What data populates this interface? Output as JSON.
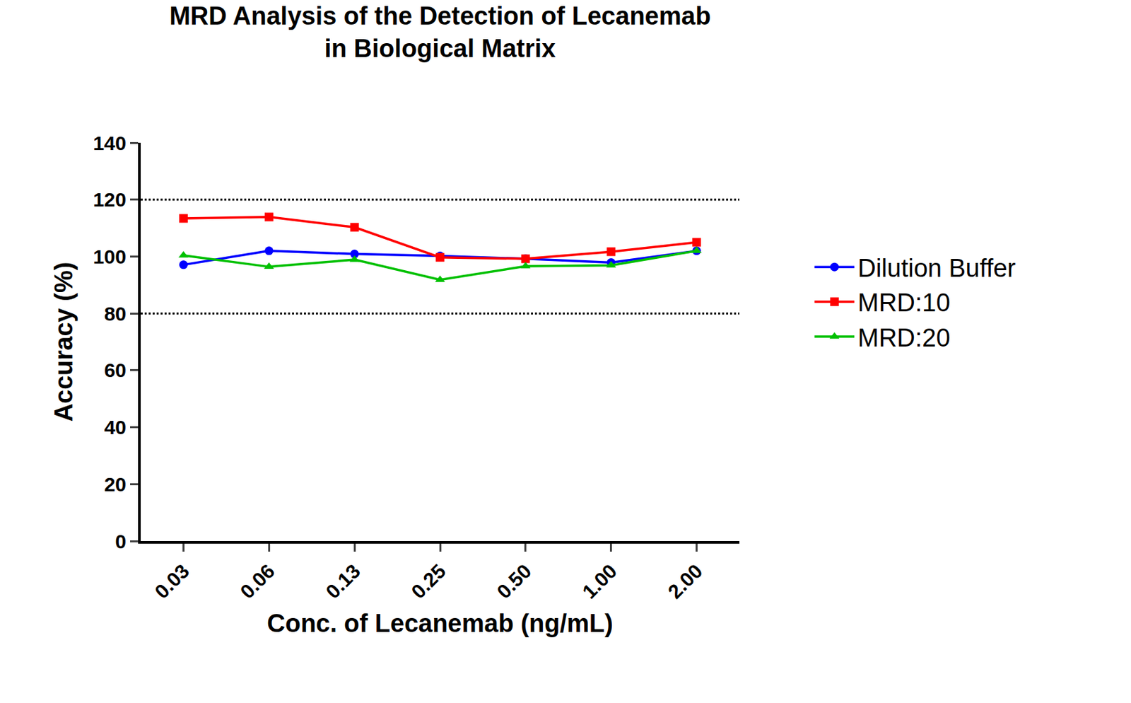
{
  "chart_data": {
    "type": "line",
    "title": "MRD Analysis of the Detection of Lecanemab\nin Biological Matrix",
    "x_label": "Conc. of Lecanemab (ng/mL)",
    "y_label": "Accuracy (%)",
    "categories": [
      "0.03",
      "0.06",
      "0.13",
      "0.25",
      "0.50",
      "1.00",
      "2.00"
    ],
    "series": [
      {
        "name": "Dilution Buffer",
        "color": "#0000ff",
        "marker": "circle",
        "values": [
          97.1,
          102.0,
          100.9,
          100.2,
          99.2,
          97.9,
          102.0
        ]
      },
      {
        "name": "MRD:10",
        "color": "#ff0000",
        "marker": "square",
        "values": [
          113.4,
          113.9,
          110.3,
          99.7,
          99.2,
          101.7,
          105.0
        ]
      },
      {
        "name": "MRD:20",
        "color": "#00c000",
        "marker": "triangle-up",
        "values": [
          100.4,
          96.4,
          98.9,
          91.8,
          96.6,
          96.9,
          102.0
        ]
      }
    ],
    "ylim": [
      0,
      140
    ],
    "yticks": [
      0,
      20,
      40,
      60,
      80,
      100,
      120,
      140
    ],
    "reference_lines": [
      80,
      120
    ],
    "grid": false,
    "legend": "right"
  }
}
